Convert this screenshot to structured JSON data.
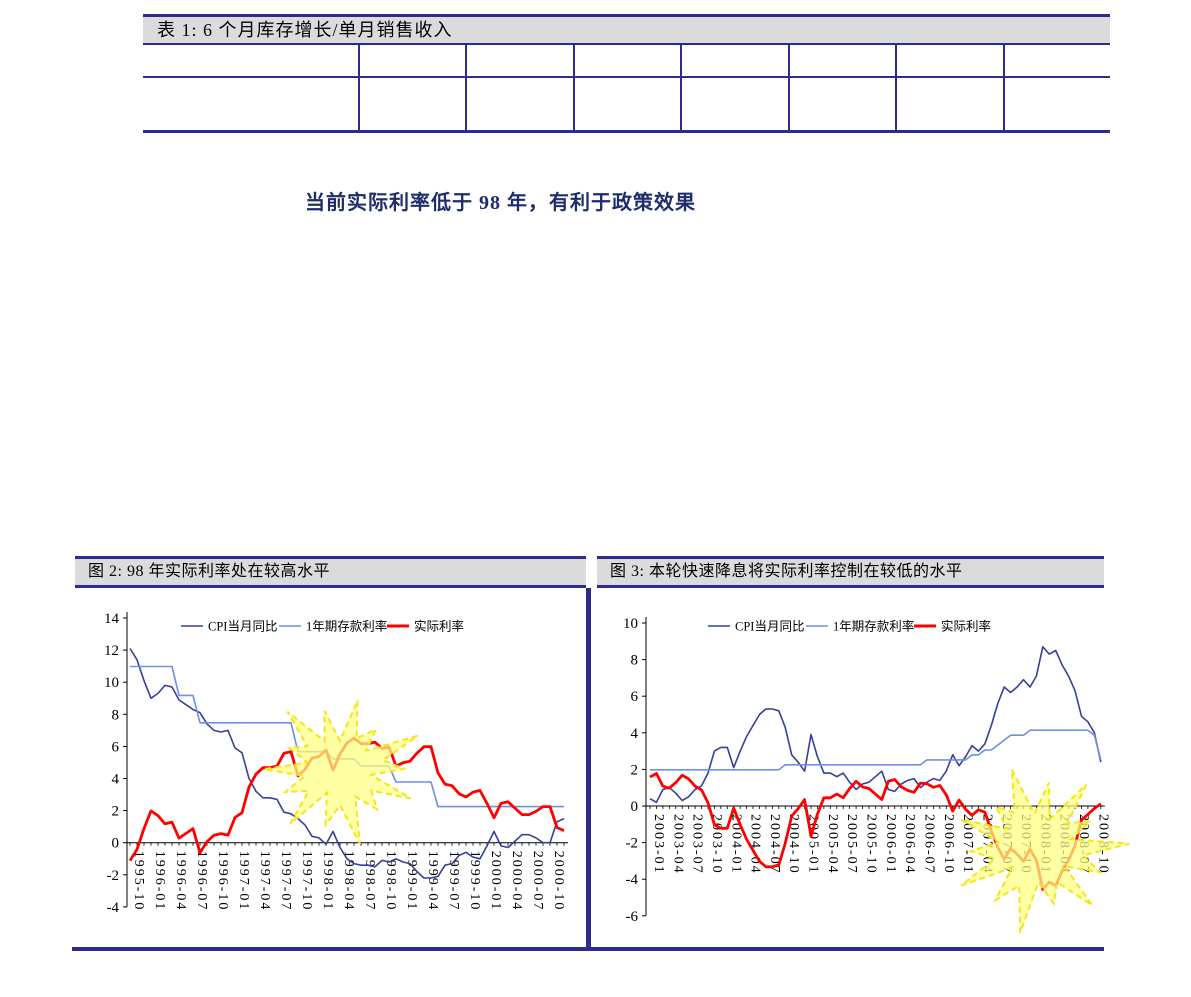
{
  "document": {
    "table": {
      "title": "表 1:  6 个月库存增长/单月销售收入",
      "column_count": 8,
      "header_cells": [
        "",
        "",
        "",
        "",
        "",
        "",
        "",
        ""
      ],
      "body_cells": [
        "",
        "",
        "",
        "",
        "",
        "",
        "",
        ""
      ]
    },
    "heading": "当前实际利率低于 98 年，有利于政策效果",
    "colors": {
      "accent_navy": "#2E2B8F",
      "table_title_bg": "#DBDBDB",
      "heading_text": "#1F2D6B",
      "cpi_line": "#35409A",
      "deposit_line": "#6E8FE6",
      "real_line": "#FF0000",
      "starburst_fill": "#FFFF80",
      "starburst_edge": "#F2E713",
      "axis": "#000000"
    }
  },
  "chart_data": [
    {
      "type": "line",
      "title": "图 2:  98 年实际利率处在较高水平",
      "x_start": "1995-10",
      "x_frequency": "monthly",
      "x_tick_every": 3,
      "x_tick_labels": [
        "1995-10",
        "1996-01",
        "1996-04",
        "1996-07",
        "1996-10",
        "1997-01",
        "1997-04",
        "1997-07",
        "1997-10",
        "1998-01",
        "1998-04",
        "1998-07",
        "1998-10",
        "1999-01",
        "1999-04",
        "1999-07",
        "1999-10",
        "2000-01",
        "2000-04",
        "2000-07",
        "2000-10"
      ],
      "ylim": [
        -4,
        14
      ],
      "yticks": [
        14,
        12,
        10,
        8,
        6,
        4,
        2,
        0,
        -2,
        -4
      ],
      "legend_position": "top-center",
      "grid": false,
      "series": [
        {
          "name": "CPI当月同比",
          "color_key": "cpi",
          "values": [
            12.1,
            11.4,
            10.1,
            9.0,
            9.3,
            9.8,
            9.7,
            8.9,
            8.6,
            8.3,
            8.1,
            7.4,
            7.0,
            6.9,
            7.0,
            5.9,
            5.6,
            4.0,
            3.2,
            2.8,
            2.8,
            2.7,
            1.9,
            1.8,
            1.5,
            1.1,
            0.4,
            0.3,
            -0.1,
            0.7,
            -0.3,
            -1.0,
            -1.3,
            -1.4,
            -1.4,
            -1.5,
            -1.1,
            -1.2,
            -1.0,
            -1.2,
            -1.3,
            -1.8,
            -2.2,
            -2.2,
            -2.1,
            -1.4,
            -1.3,
            -0.8,
            -0.6,
            -0.9,
            -1.0,
            -0.2,
            0.7,
            -0.2,
            -0.3,
            0.1,
            0.5,
            0.5,
            0.3,
            0.0,
            0.0,
            1.3,
            1.5
          ]
        },
        {
          "name": "1年期存款利率",
          "color_key": "deposit",
          "values": [
            10.98,
            10.98,
            10.98,
            10.98,
            10.98,
            10.98,
            10.98,
            9.18,
            9.18,
            9.18,
            7.47,
            7.47,
            7.47,
            7.47,
            7.47,
            7.47,
            7.47,
            7.47,
            7.47,
            7.47,
            7.47,
            7.47,
            7.47,
            7.47,
            5.67,
            5.67,
            5.67,
            5.67,
            5.67,
            5.22,
            5.22,
            5.22,
            5.22,
            4.77,
            4.77,
            4.77,
            4.77,
            4.77,
            3.78,
            3.78,
            3.78,
            3.78,
            3.78,
            3.78,
            2.25,
            2.25,
            2.25,
            2.25,
            2.25,
            2.25,
            2.25,
            2.25,
            2.25,
            2.25,
            2.25,
            2.25,
            2.25,
            2.25,
            2.25,
            2.25,
            2.25,
            2.25,
            2.25
          ]
        },
        {
          "name": "实际利率",
          "color_key": "real",
          "values": [
            -1.12,
            -0.42,
            0.88,
            1.98,
            1.68,
            1.18,
            1.28,
            0.28,
            0.58,
            0.88,
            -0.63,
            0.07,
            0.47,
            0.57,
            0.47,
            1.57,
            1.87,
            3.47,
            4.27,
            4.67,
            4.67,
            4.77,
            5.57,
            5.67,
            4.17,
            4.57,
            5.27,
            5.37,
            5.77,
            4.52,
            5.52,
            6.22,
            6.52,
            6.17,
            6.17,
            6.27,
            5.87,
            5.97,
            4.78,
            4.98,
            5.08,
            5.58,
            5.98,
            5.98,
            4.35,
            3.65,
            3.55,
            3.05,
            2.85,
            3.15,
            3.25,
            2.45,
            1.55,
            2.45,
            2.55,
            2.15,
            1.75,
            1.75,
            1.95,
            2.25,
            2.25,
            0.95,
            0.75
          ]
        }
      ],
      "annotation": {
        "shape": "starburst",
        "center_index": 30,
        "center_value": 4.6
      }
    },
    {
      "type": "line",
      "title": "图 3:  本轮快速降息将实际利率控制在较低的水平",
      "x_start": "2003-01",
      "x_frequency": "monthly",
      "x_tick_every": 3,
      "x_tick_labels": [
        "2003-01",
        "2003-04",
        "2003-07",
        "2003-10",
        "2004-01",
        "2004-04",
        "2004-07",
        "2004-10",
        "2005-01",
        "2005-04",
        "2005-07",
        "2005-10",
        "2006-01",
        "2006-04",
        "2006-07",
        "2006-10",
        "2007-01",
        "2007-04",
        "2007-07",
        "2007-10",
        "2008-01",
        "2008-04",
        "2008-07",
        "2008-10"
      ],
      "ylim": [
        -6,
        10
      ],
      "yticks": [
        10,
        8,
        6,
        4,
        2,
        0,
        -2,
        -4,
        -6
      ],
      "legend_position": "top-center",
      "grid": false,
      "series": [
        {
          "name": "CPI当月同比",
          "color_key": "cpi",
          "values": [
            0.4,
            0.2,
            0.9,
            1.0,
            0.7,
            0.3,
            0.5,
            0.9,
            1.1,
            1.8,
            3.0,
            3.2,
            3.2,
            2.1,
            3.0,
            3.8,
            4.4,
            5.0,
            5.3,
            5.3,
            5.2,
            4.3,
            2.8,
            2.4,
            1.9,
            3.9,
            2.7,
            1.8,
            1.8,
            1.6,
            1.8,
            1.3,
            0.9,
            1.2,
            1.3,
            1.6,
            1.9,
            0.9,
            0.8,
            1.2,
            1.4,
            1.5,
            1.0,
            1.3,
            1.5,
            1.4,
            1.9,
            2.8,
            2.2,
            2.7,
            3.3,
            3.0,
            3.4,
            4.4,
            5.6,
            6.5,
            6.2,
            6.5,
            6.9,
            6.5,
            7.1,
            8.7,
            8.3,
            8.5,
            7.7,
            7.1,
            6.3,
            4.9,
            4.6,
            4.0,
            2.4
          ]
        },
        {
          "name": "1年期存款利率",
          "color_key": "deposit",
          "values": [
            1.98,
            1.98,
            1.98,
            1.98,
            1.98,
            1.98,
            1.98,
            1.98,
            1.98,
            1.98,
            1.98,
            1.98,
            1.98,
            1.98,
            1.98,
            1.98,
            1.98,
            1.98,
            1.98,
            1.98,
            1.98,
            2.25,
            2.25,
            2.25,
            2.25,
            2.25,
            2.25,
            2.25,
            2.25,
            2.25,
            2.25,
            2.25,
            2.25,
            2.25,
            2.25,
            2.25,
            2.25,
            2.25,
            2.25,
            2.25,
            2.25,
            2.25,
            2.25,
            2.52,
            2.52,
            2.52,
            2.52,
            2.52,
            2.52,
            2.52,
            2.79,
            2.79,
            3.06,
            3.06,
            3.33,
            3.6,
            3.87,
            3.87,
            3.87,
            4.14,
            4.14,
            4.14,
            4.14,
            4.14,
            4.14,
            4.14,
            4.14,
            4.14,
            4.14,
            3.87,
            2.52
          ]
        },
        {
          "name": "实际利率",
          "color_key": "real",
          "values": [
            1.58,
            1.78,
            1.08,
            0.98,
            1.28,
            1.68,
            1.48,
            1.08,
            0.88,
            0.18,
            -1.02,
            -1.22,
            -1.22,
            -0.12,
            -1.02,
            -1.82,
            -2.42,
            -3.02,
            -3.32,
            -3.32,
            -3.22,
            -2.05,
            -0.55,
            -0.15,
            0.35,
            -1.65,
            -0.45,
            0.45,
            0.45,
            0.65,
            0.45,
            0.95,
            1.35,
            1.05,
            0.95,
            0.65,
            0.35,
            1.35,
            1.45,
            1.05,
            0.85,
            0.75,
            1.25,
            1.22,
            1.02,
            1.12,
            0.62,
            -0.28,
            0.32,
            -0.18,
            -0.51,
            -0.21,
            -0.34,
            -1.34,
            -2.27,
            -2.9,
            -2.33,
            -2.63,
            -3.03,
            -2.36,
            -2.96,
            -4.56,
            -4.16,
            -4.36,
            -3.56,
            -2.96,
            -2.16,
            -0.76,
            -0.46,
            -0.13,
            0.12
          ]
        }
      ],
      "annotation": {
        "shape": "starburst",
        "center_index": 60,
        "center_value": -2.3
      }
    }
  ]
}
